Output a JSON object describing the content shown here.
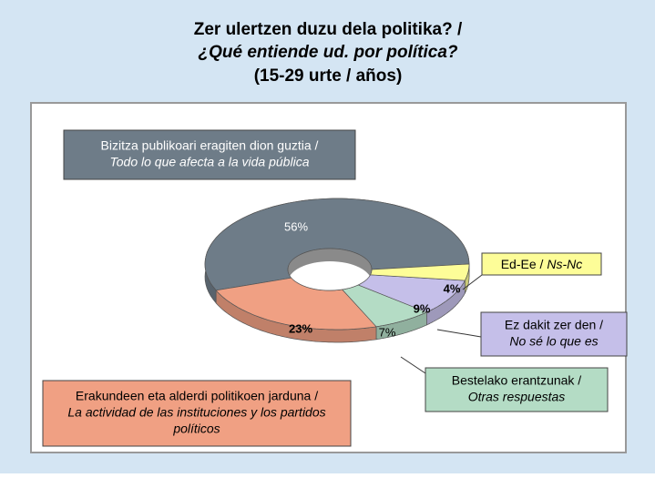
{
  "chart_data": {
    "type": "donut3d",
    "title": [
      "Zer ulertzen duzu dela politika? /",
      "¿Qué entiende ud. por política?",
      "(15-29 urte / años)"
    ],
    "categories": [
      "Bizitza publikoari eragiten dion guztia /",
      "Erakundeen eta alderdi politikoen jarduna /",
      "Bestelako erantzunak /",
      "Ez dakit zer den /",
      "Ed-Ee /"
    ],
    "translations": [
      [
        "Todo lo que afecta a la vida pública"
      ],
      [
        "La actividad de las instituciones y los partidos",
        "políticos"
      ],
      [
        "Otras respuestas"
      ],
      [
        "No sé lo que es"
      ],
      [
        "Ns-Nc"
      ]
    ],
    "values": [
      56,
      23,
      7,
      9,
      4
    ],
    "value_labels": [
      "56%",
      "23%",
      "7%",
      "9%",
      "4%"
    ],
    "colors": [
      "#6e7c88",
      "#f0a083",
      "#b4dcc5",
      "#c5bfe9",
      "#fdfd98"
    ]
  }
}
